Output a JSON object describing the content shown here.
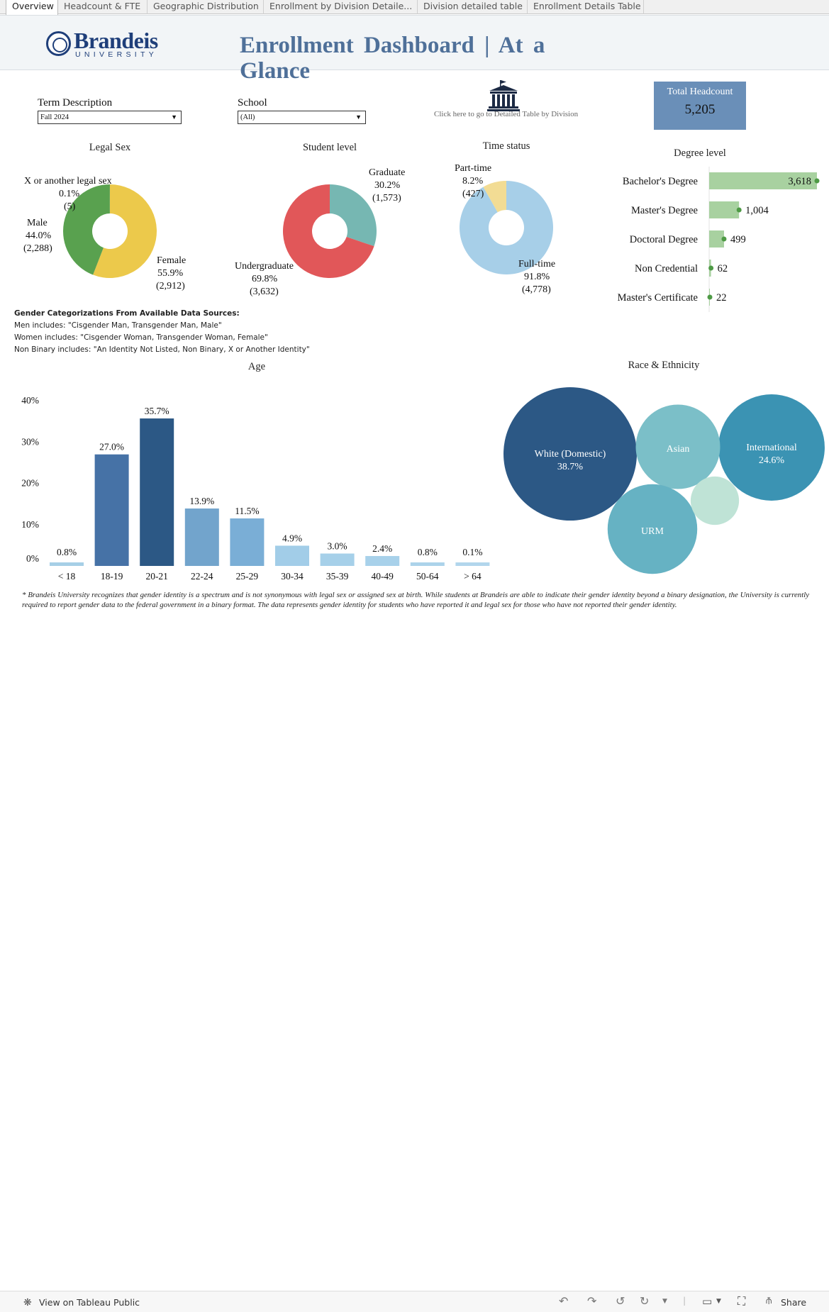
{
  "tabs": [
    {
      "label": "Overview"
    },
    {
      "label": "Headcount & FTE"
    },
    {
      "label": "Geographic Distribution"
    },
    {
      "label": "Enrollment by Division Detaile..."
    },
    {
      "label": "Division detailed table"
    },
    {
      "label": "Enrollment Details Table"
    }
  ],
  "header": {
    "logo_name": "Brandeis",
    "logo_sub": "UNIVERSITY",
    "title": "Enrollment Dashboard | At a Glance"
  },
  "filters": {
    "term_label": "Term Description",
    "term_value": "Fall 2024",
    "school_label": "School",
    "school_value": "(All)"
  },
  "detail_link": "Click here to go to Detailed Table by Division",
  "total": {
    "label": "Total Headcount",
    "value": "5,205"
  },
  "legal_sex": {
    "title": "Legal Sex",
    "slices": [
      {
        "name": "Female",
        "pct": "55.9%",
        "count": "(2,912)",
        "value": 55.9,
        "color": "#ecc94b"
      },
      {
        "name": "Male",
        "pct": "44.0%",
        "count": "(2,288)",
        "value": 44.0,
        "color": "#59a14f"
      },
      {
        "name": "X or another legal sex",
        "pct": "0.1%",
        "count": "(5)",
        "value": 0.1,
        "color": "#4e9a45"
      }
    ]
  },
  "student_level": {
    "title": "Student level",
    "slices": [
      {
        "name": "Graduate",
        "pct": "30.2%",
        "count": "(1,573)",
        "value": 30.2,
        "color": "#76b7b2"
      },
      {
        "name": "Undergraduate",
        "pct": "69.8%",
        "count": "(3,632)",
        "value": 69.8,
        "color": "#e15759"
      }
    ]
  },
  "time_status": {
    "title": "Time status",
    "slices": [
      {
        "name": "Full-time",
        "pct": "91.8%",
        "count": "(4,778)",
        "value": 91.8,
        "color": "#a7cfe8"
      },
      {
        "name": "Part-time",
        "pct": "8.2%",
        "count": "(427)",
        "value": 8.2,
        "color": "#f2dc94"
      }
    ]
  },
  "degree_level": {
    "title": "Degree level",
    "categories": [
      "Bachelor's Degree",
      "Master's Degree",
      "Doctoral Degree",
      "Non Credential",
      "Master's Certificate"
    ],
    "values": [
      3618,
      1004,
      499,
      62,
      22
    ],
    "labels": [
      "3,618",
      "1,004",
      "499",
      "62",
      "22"
    ],
    "bar_color": "#a8d1a0",
    "dot_color": "#4e9a45"
  },
  "gender_notes": {
    "title": "Gender Categorizations From Available Data Sources:",
    "men": "Men includes: \"Cisgender Man, Transgender Man, Male\"",
    "women": "Women includes: \"Cisgender Woman, Transgender Woman, Female\"",
    "nonbinary": "Non Binary includes: \"An Identity Not Listed, Non Binary, X or Another Identity\""
  },
  "chart_data": [
    {
      "type": "bar",
      "title": "Age",
      "categories": [
        "< 18",
        "18-19",
        "20-21",
        "22-24",
        "25-29",
        "30-34",
        "35-39",
        "40-49",
        "50-64",
        "> 64"
      ],
      "values": [
        0.8,
        27.0,
        35.7,
        13.9,
        11.5,
        4.9,
        3.0,
        2.4,
        0.8,
        0.1
      ],
      "labels": [
        "0.8%",
        "27.0%",
        "35.7%",
        "13.9%",
        "11.5%",
        "4.9%",
        "3.0%",
        "2.4%",
        "0.8%",
        "0.1%"
      ],
      "colors": [
        "#a6cfe6",
        "#4672a6",
        "#2c5885",
        "#72a4cc",
        "#7aaed6",
        "#a2cde8",
        "#a6d0e9",
        "#a8d1ea",
        "#acd3ea",
        "#b2d6ec"
      ],
      "yticks": [
        "0%",
        "10%",
        "20%",
        "30%",
        "40%"
      ],
      "ylim": [
        0,
        40
      ]
    },
    {
      "type": "bubble",
      "title": "Race & Ethnicity",
      "bubbles": [
        {
          "name": "White (Domestic)",
          "pct": "38.7%",
          "value": 38.7,
          "color": "#2c5885"
        },
        {
          "name": "International",
          "pct": "24.6%",
          "value": 24.6,
          "color": "#3b93b3"
        },
        {
          "name": "Asian",
          "pct": "",
          "value": 15.5,
          "color": "#7bbfc8"
        },
        {
          "name": "URM",
          "pct": "",
          "value": 17.5,
          "color": "#66b2c3"
        },
        {
          "name": "",
          "pct": "",
          "value": 5.1,
          "color": "#bfe3d6"
        }
      ]
    }
  ],
  "footnote": "* Brandeis University recognizes that gender identity is a spectrum and is not synonymous with legal sex or assigned sex at birth. While students at Brandeis are able to indicate their gender identity beyond a binary designation, the University is currently required to report gender data to the federal government in a binary format. The data represents gender identity for students who have reported it and legal sex for those who have not reported their gender identity.",
  "toolbar": {
    "view_on": "View on Tableau Public",
    "share": "Share"
  }
}
